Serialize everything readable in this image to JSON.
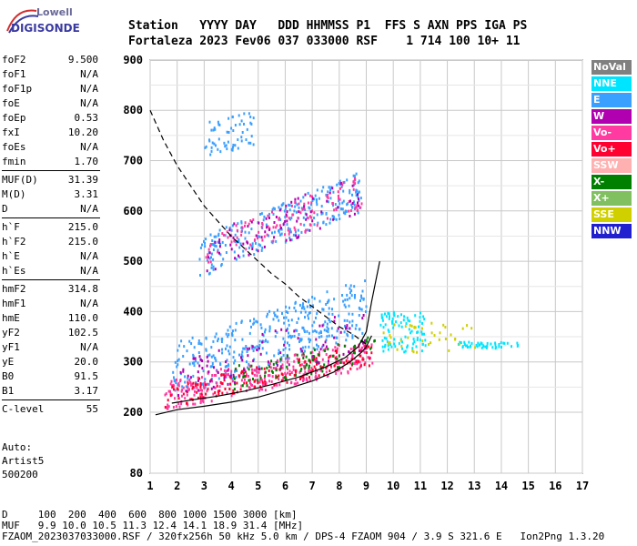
{
  "logo": {
    "line1": "Lowell",
    "line2": "DIGISONDE"
  },
  "header": {
    "labels": "Station   YYYY DAY   DDD HHMMSS P1  FFS S AXN PPS IGA PS",
    "values": "Fortaleza 2023 Fev06 037 033000 RSF    1 714 100 10+ 11"
  },
  "params": [
    {
      "name": "foF2",
      "value": "9.500"
    },
    {
      "name": "foF1",
      "value": "N/A"
    },
    {
      "name": "foF1p",
      "value": "N/A"
    },
    {
      "name": "foE",
      "value": "N/A"
    },
    {
      "name": "foEp",
      "value": "0.53"
    },
    {
      "name": "fxI",
      "value": "10.20"
    },
    {
      "name": "foEs",
      "value": "N/A"
    },
    {
      "name": "fmin",
      "value": "1.70"
    },
    {
      "name": "MUF(D)",
      "value": "31.39"
    },
    {
      "name": "M(D)",
      "value": "3.31"
    },
    {
      "name": "D",
      "value": "N/A"
    },
    {
      "name": "h`F",
      "value": "215.0"
    },
    {
      "name": "h`F2",
      "value": "215.0"
    },
    {
      "name": "h`E",
      "value": "N/A"
    },
    {
      "name": "h`Es",
      "value": "N/A"
    },
    {
      "name": "hmF2",
      "value": "314.8"
    },
    {
      "name": "hmF1",
      "value": "N/A"
    },
    {
      "name": "hmE",
      "value": "110.0"
    },
    {
      "name": "yF2",
      "value": "102.5"
    },
    {
      "name": "yF1",
      "value": "N/A"
    },
    {
      "name": "yE",
      "value": "20.0"
    },
    {
      "name": "B0",
      "value": "91.5"
    },
    {
      "name": "B1",
      "value": "3.17"
    },
    {
      "name": "C-level",
      "value": "55"
    }
  ],
  "auto": {
    "line1": "Auto:",
    "line2": "Artist5",
    "line3": "500200"
  },
  "legend": [
    {
      "label": "NoVal",
      "color": "#808080"
    },
    {
      "label": "NNE",
      "color": "#00e5ff"
    },
    {
      "label": "E",
      "color": "#3aa0ff"
    },
    {
      "label": "W",
      "color": "#b000b0"
    },
    {
      "label": "Vo-",
      "color": "#ff3aa0"
    },
    {
      "label": "Vo+",
      "color": "#ff0030"
    },
    {
      "label": "SSW",
      "color": "#ffb0b0"
    },
    {
      "label": "X-",
      "color": "#008000"
    },
    {
      "label": "X+",
      "color": "#80c060"
    },
    {
      "label": "SSE",
      "color": "#d0d000"
    },
    {
      "label": "NNW",
      "color": "#2020d0"
    }
  ],
  "footer": {
    "line1": "D     100  200  400  600  800 1000 1500 3000 [km]",
    "line2": "MUF   9.9 10.0 10.5 11.3 12.4 14.1 18.9 31.4 [MHz]",
    "line3": "FZAOM_2023037033000.RSF / 320fx256h 50 kHz 5.0 km / DPS-4 FZAOM 904 / 3.9 S 321.6 E   Ion2Png 1.3.20"
  },
  "chart_data": {
    "type": "scatter",
    "title": "",
    "xlabel": "",
    "ylabel": "",
    "xlim": [
      1,
      17
    ],
    "ylim": [
      80,
      900
    ],
    "x_ticks": [
      1,
      2,
      3,
      4,
      5,
      6,
      7,
      8,
      9,
      10,
      11,
      12,
      13,
      14,
      15,
      16,
      17
    ],
    "y_ticks": [
      80,
      200,
      300,
      400,
      500,
      600,
      700,
      800,
      900
    ],
    "grid": true,
    "legend_position": "right",
    "curves": [
      {
        "name": "profile-solid-lower",
        "style": "solid",
        "x": [
          1.2,
          2,
          3,
          4,
          5,
          6,
          7,
          7.8,
          8.4,
          8.8,
          9.0,
          9.2
        ],
        "y": [
          195,
          205,
          212,
          220,
          230,
          245,
          262,
          280,
          300,
          318,
          330,
          352
        ]
      },
      {
        "name": "profile-solid-upper",
        "style": "solid",
        "x": [
          1.8,
          2.5,
          3.5,
          4.5,
          5.5,
          6.5,
          7.5,
          8.2,
          8.7,
          9.0,
          9.2,
          9.5
        ],
        "y": [
          218,
          224,
          232,
          242,
          255,
          270,
          290,
          308,
          330,
          360,
          420,
          500
        ]
      },
      {
        "name": "muf-dashed",
        "style": "dashed",
        "x": [
          1.0,
          1.5,
          2.0,
          2.5,
          3.0,
          3.5,
          4.0,
          4.5,
          5.0,
          5.5,
          6.0,
          6.5,
          7.0,
          7.5,
          8.0,
          8.5,
          9.0
        ],
        "y": [
          800,
          740,
          690,
          650,
          610,
          580,
          550,
          525,
          500,
          475,
          455,
          430,
          410,
          390,
          370,
          355,
          335
        ]
      }
    ],
    "clusters": [
      {
        "series": "E",
        "x_range": [
          1.8,
          9.0
        ],
        "y_center_at_x1": 270,
        "y_slope": 18,
        "spread": 55,
        "count": 380
      },
      {
        "series": "Vo-",
        "x_range": [
          1.5,
          9.2
        ],
        "y_center_at_x1": 230,
        "y_slope": 11,
        "spread": 30,
        "count": 320
      },
      {
        "series": "Vo+",
        "x_range": [
          1.5,
          9.2
        ],
        "y_center_at_x1": 228,
        "y_slope": 11,
        "spread": 22,
        "count": 160
      },
      {
        "series": "X-",
        "x_range": [
          4.0,
          9.4
        ],
        "y_center_at_x1": 232,
        "y_slope": 12,
        "spread": 25,
        "count": 90
      },
      {
        "series": "W",
        "x_range": [
          2.0,
          9.0
        ],
        "y_center_at_x1": 255,
        "y_slope": 14,
        "spread": 45,
        "count": 90
      },
      {
        "series": "E",
        "x_range": [
          2.8,
          8.8
        ],
        "y_center_at_x1": 470,
        "y_slope": 22,
        "spread": 40,
        "count": 260
      },
      {
        "series": "Vo-",
        "x_range": [
          3.0,
          8.8
        ],
        "y_center_at_x1": 470,
        "y_slope": 22,
        "spread": 35,
        "count": 110
      },
      {
        "series": "W",
        "x_range": [
          3.0,
          8.8
        ],
        "y_center_at_x1": 470,
        "y_slope": 22,
        "spread": 40,
        "count": 80
      },
      {
        "series": "NNE",
        "x_range": [
          9.5,
          11.2
        ],
        "y_center_at_x1": 380,
        "y_slope": -2,
        "spread": 40,
        "count": 90
      },
      {
        "series": "NNE",
        "x_range": [
          12.3,
          14.7
        ],
        "y_center_at_x1": 342,
        "y_slope": -0.5,
        "spread": 6,
        "count": 45
      },
      {
        "series": "SSE",
        "x_range": [
          9.6,
          13.0
        ],
        "y_center_at_x1": 350,
        "y_slope": 0,
        "spread": 30,
        "count": 40
      },
      {
        "series": "E",
        "x_range": [
          3.0,
          4.8
        ],
        "y_center_at_x1": 720,
        "y_slope": 12,
        "spread": 35,
        "count": 60
      }
    ]
  }
}
